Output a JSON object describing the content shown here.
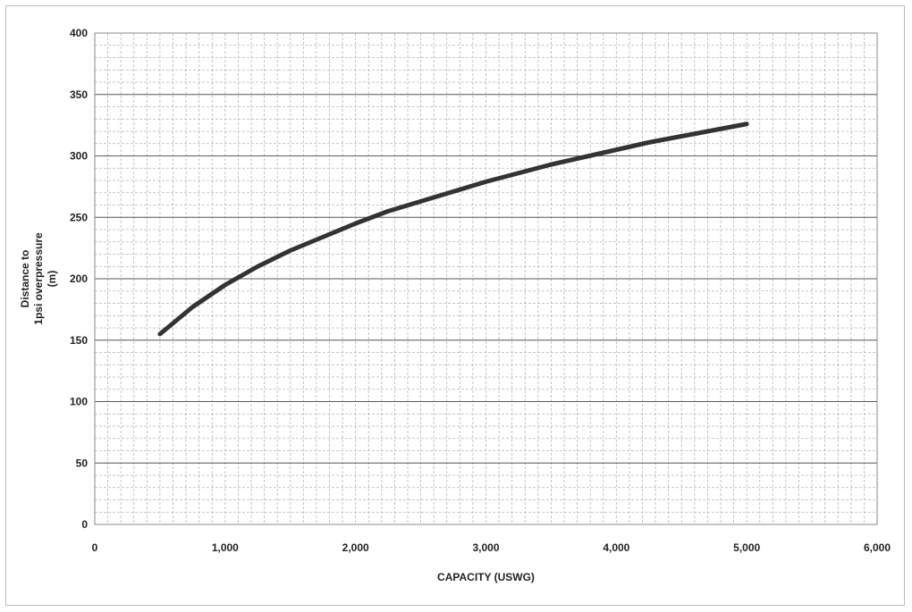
{
  "chart_data": {
    "type": "line",
    "title": "",
    "xlabel": "CAPACITY (USWG)",
    "ylabel_lines": [
      "Distance to",
      "1psi overpressure",
      "(m)"
    ],
    "xlim": [
      0,
      6000
    ],
    "ylim": [
      0,
      400
    ],
    "x_ticks": [
      0,
      1000,
      2000,
      3000,
      4000,
      5000,
      6000
    ],
    "x_tick_labels": [
      "0",
      "1,000",
      "2,000",
      "3,000",
      "4,000",
      "5,000",
      "6,000"
    ],
    "y_ticks": [
      0,
      50,
      100,
      150,
      200,
      250,
      300,
      350,
      400
    ],
    "y_tick_labels": [
      "0",
      "50",
      "100",
      "150",
      "200",
      "250",
      "300",
      "350",
      "400"
    ],
    "grid": true,
    "legend": "none",
    "series": [
      {
        "color": "#333333",
        "x": [
          500,
          750,
          1000,
          1250,
          1500,
          1750,
          2000,
          2250,
          2500,
          2750,
          3000,
          3250,
          3500,
          3750,
          4000,
          4250,
          4500,
          4750,
          5000
        ],
        "y": [
          155,
          177,
          195,
          210,
          223,
          234,
          245,
          255,
          263,
          271,
          279,
          286,
          293,
          299,
          305,
          311,
          316,
          321,
          326
        ]
      }
    ]
  }
}
